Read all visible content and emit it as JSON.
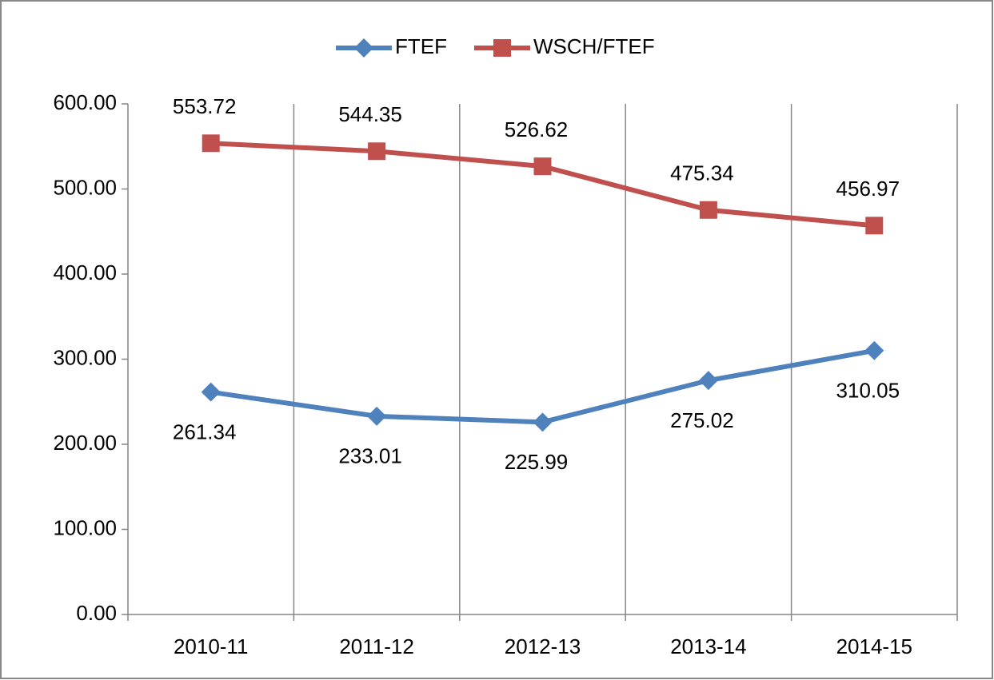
{
  "chart_data": {
    "type": "line",
    "categories": [
      "2010-11",
      "2011-12",
      "2012-13",
      "2013-14",
      "2014-15"
    ],
    "series": [
      {
        "name": "FTEF",
        "color": "#4f81bd",
        "marker": "diamond",
        "values": [
          261.34,
          233.01,
          225.99,
          275.02,
          310.05
        ]
      },
      {
        "name": "WSCH/FTEF",
        "color": "#c0504d",
        "marker": "square",
        "values": [
          553.72,
          544.35,
          526.62,
          475.34,
          456.97
        ]
      }
    ],
    "ylim": [
      0,
      600
    ],
    "yticks": [
      {
        "value": 0,
        "label": "0.00"
      },
      {
        "value": 100,
        "label": "100.00"
      },
      {
        "value": 200,
        "label": "200.00"
      },
      {
        "value": 300,
        "label": "300.00"
      },
      {
        "value": 400,
        "label": "400.00"
      },
      {
        "value": 500,
        "label": "500.00"
      },
      {
        "value": 600,
        "label": "600.00"
      }
    ],
    "grid": true,
    "legend": "top"
  }
}
